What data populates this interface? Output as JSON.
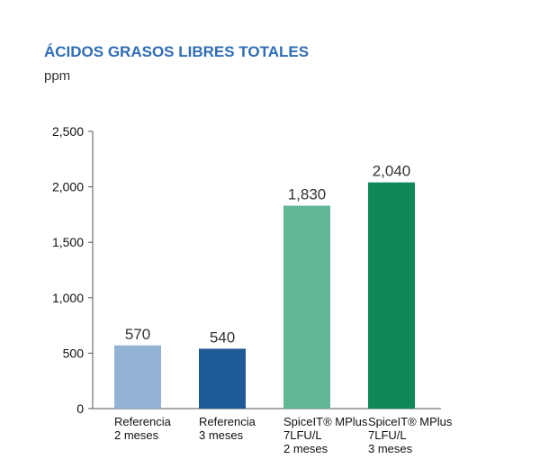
{
  "chart_data": {
    "type": "bar",
    "title": "ÁCIDOS GRASOS LIBRES TOTALES",
    "subtitle": "ppm",
    "categories": [
      [
        "Referencia",
        "2 meses"
      ],
      [
        "Referencia",
        "3 meses"
      ],
      [
        "SpiceIT® MPlus",
        "7LFU/L",
        "2 meses"
      ],
      [
        "SpiceIT® MPlus",
        "7LFU/L",
        "3 meses"
      ]
    ],
    "values": [
      570,
      540,
      1830,
      2040
    ],
    "data_labels": [
      "570",
      "540",
      "1,830",
      "2,040"
    ],
    "colors": [
      "#94b3d4",
      "#1e5a97",
      "#5fb893",
      "#0f8a57"
    ],
    "ylim": [
      0,
      2500
    ],
    "yticks": [
      0,
      500,
      1000,
      1500,
      2000,
      2500
    ],
    "ytick_labels": [
      "0",
      "500",
      "1,000",
      "1,500",
      "2,000",
      "2,500"
    ],
    "grid": false,
    "legend": "none"
  }
}
